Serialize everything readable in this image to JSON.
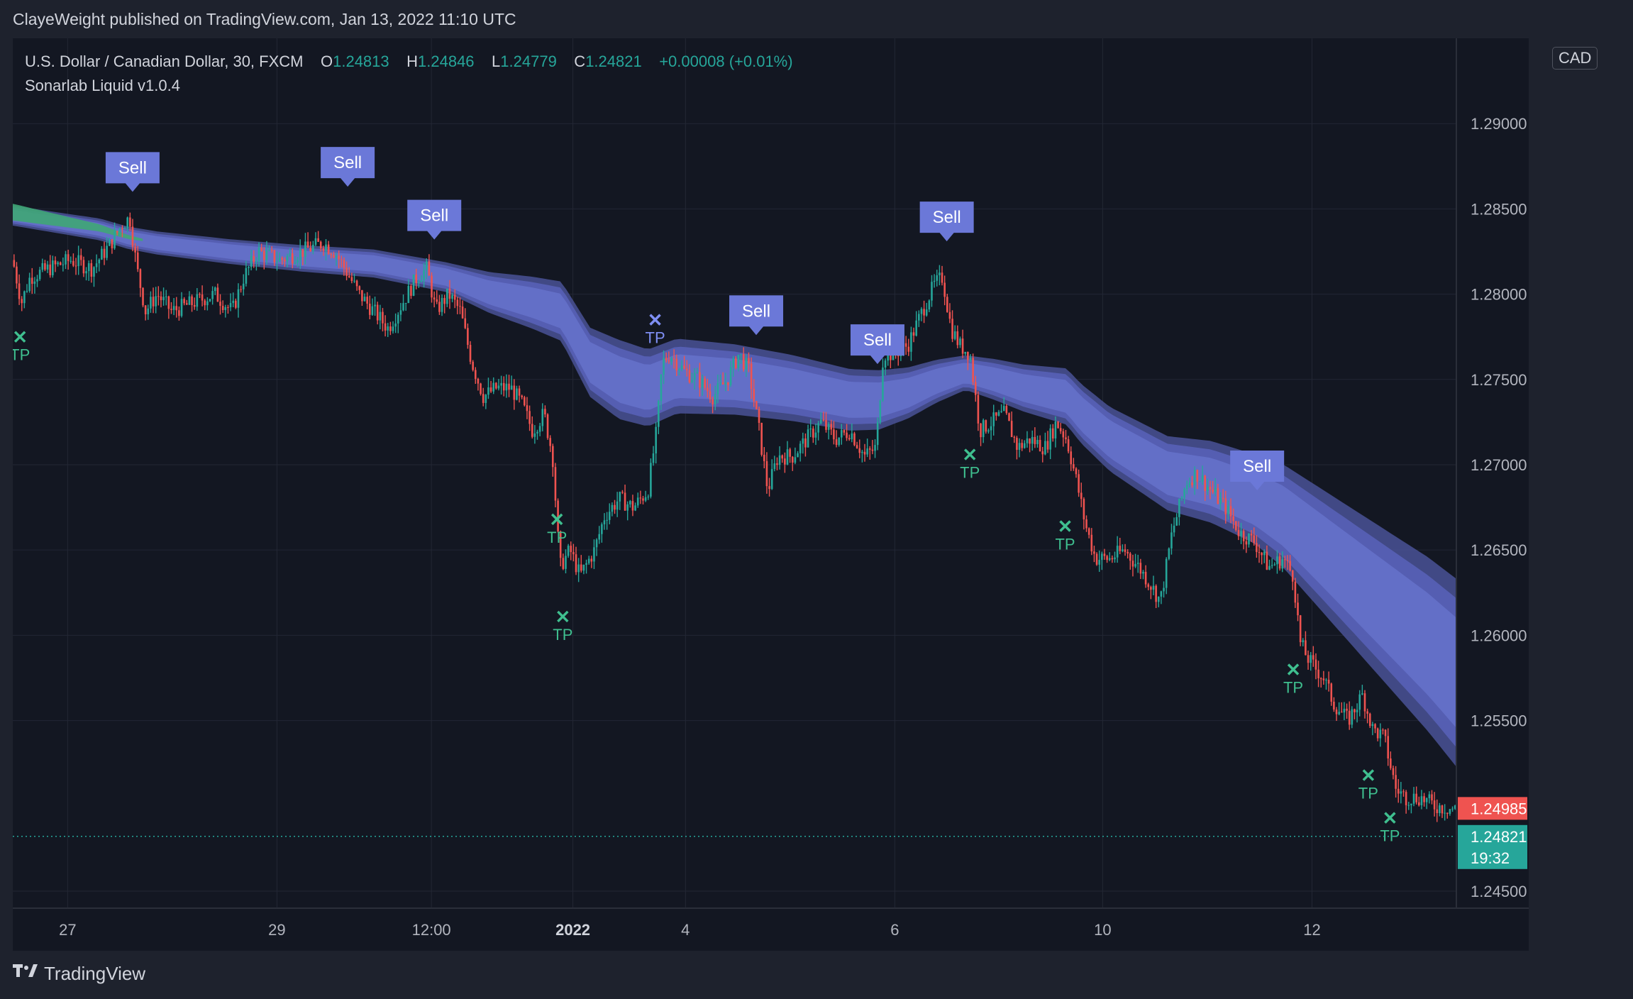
{
  "header": {
    "published_line": "ClayeWeight published on TradingView.com, Jan 13, 2022 11:10 UTC"
  },
  "legend": {
    "symbol": "U.S. Dollar / Canadian Dollar, 30, FXCM",
    "open_label": "O",
    "open": "1.24813",
    "high_label": "H",
    "high": "1.24846",
    "low_label": "L",
    "low": "1.24779",
    "close_label": "C",
    "close": "1.24821",
    "change": "+0.00008 (+0.01%)",
    "indicator": "Sonarlab Liquid v1.0.4"
  },
  "currency_button": "CAD",
  "footer": {
    "brand": "TradingView",
    "logo_icon": "tradingview-logo-icon"
  },
  "colors": {
    "background": "#131722",
    "frame": "#1e222d",
    "up": "#26a69a",
    "down": "#ef5350",
    "band": "#6470c8",
    "band_edge": "#4a5296",
    "band_green": "#3fa676",
    "signal": "#6b78d8",
    "tp_green": "#3fbf8f",
    "tp_blue": "#7f8ff5",
    "grid": "#232734"
  },
  "chart_data": {
    "type": "candlestick",
    "symbol": "USDCAD",
    "timeframe": "30",
    "ylim": [
      1.244,
      1.295
    ],
    "y_ticks": [
      "1.29000",
      "1.28500",
      "1.28000",
      "1.27500",
      "1.27000",
      "1.26500",
      "1.26000",
      "1.25500",
      "1.24500"
    ],
    "y_tick_values": [
      1.29,
      1.285,
      1.28,
      1.275,
      1.27,
      1.265,
      1.26,
      1.255,
      1.245
    ],
    "x_range": [
      0,
      100
    ],
    "x_ticks": [
      {
        "x": 3.8,
        "label": "27",
        "bold": false
      },
      {
        "x": 18.3,
        "label": "29",
        "bold": false
      },
      {
        "x": 29.0,
        "label": "12:00",
        "bold": false
      },
      {
        "x": 38.8,
        "label": "2022",
        "bold": true
      },
      {
        "x": 46.6,
        "label": "4",
        "bold": false
      },
      {
        "x": 61.1,
        "label": "6",
        "bold": false
      },
      {
        "x": 75.5,
        "label": "10",
        "bold": false
      },
      {
        "x": 90.0,
        "label": "12",
        "bold": false
      }
    ],
    "price_path": [
      [
        0,
        1.282
      ],
      [
        0.6,
        1.2795
      ],
      [
        1.2,
        1.281
      ],
      [
        2.5,
        1.2815
      ],
      [
        4,
        1.282
      ],
      [
        5.5,
        1.2815
      ],
      [
        6.8,
        1.283
      ],
      [
        7.5,
        1.284
      ],
      [
        8.1,
        1.2845
      ],
      [
        8.6,
        1.2815
      ],
      [
        9.2,
        1.279
      ],
      [
        10,
        1.28
      ],
      [
        11,
        1.279
      ],
      [
        12.5,
        1.2795
      ],
      [
        14,
        1.28
      ],
      [
        15.2,
        1.279
      ],
      [
        16,
        1.281
      ],
      [
        17,
        1.2825
      ],
      [
        18.5,
        1.282
      ],
      [
        20,
        1.2825
      ],
      [
        21.5,
        1.283
      ],
      [
        22.3,
        1.2825
      ],
      [
        23,
        1.2815
      ],
      [
        24,
        1.28
      ],
      [
        25,
        1.279
      ],
      [
        26,
        1.278
      ],
      [
        27,
        1.2795
      ],
      [
        28,
        1.281
      ],
      [
        28.7,
        1.2815
      ],
      [
        29.3,
        1.279
      ],
      [
        30.2,
        1.28
      ],
      [
        31,
        1.279
      ],
      [
        31.8,
        1.276
      ],
      [
        32.6,
        1.274
      ],
      [
        33.5,
        1.2745
      ],
      [
        34.5,
        1.2745
      ],
      [
        35.3,
        1.2735
      ],
      [
        36,
        1.272
      ],
      [
        36.8,
        1.273
      ],
      [
        37.4,
        1.2705
      ],
      [
        37.9,
        1.264
      ],
      [
        38.6,
        1.265
      ],
      [
        39.3,
        1.2635
      ],
      [
        40.3,
        1.265
      ],
      [
        41,
        1.267
      ],
      [
        42,
        1.268
      ],
      [
        43,
        1.2675
      ],
      [
        44,
        1.2685
      ],
      [
        44.6,
        1.272
      ],
      [
        45,
        1.276
      ],
      [
        45.5,
        1.2765
      ],
      [
        46.5,
        1.2755
      ],
      [
        47.5,
        1.275
      ],
      [
        48.5,
        1.274
      ],
      [
        49.5,
        1.275
      ],
      [
        50.3,
        1.2765
      ],
      [
        51,
        1.2755
      ],
      [
        51.7,
        1.272
      ],
      [
        52.3,
        1.2685
      ],
      [
        53,
        1.2705
      ],
      [
        54,
        1.2705
      ],
      [
        55,
        1.2715
      ],
      [
        56,
        1.2725
      ],
      [
        57,
        1.2715
      ],
      [
        58,
        1.272
      ],
      [
        59,
        1.2705
      ],
      [
        59.8,
        1.271
      ],
      [
        60.3,
        1.2765
      ],
      [
        61,
        1.2765
      ],
      [
        62,
        1.277
      ],
      [
        63,
        1.279
      ],
      [
        63.8,
        1.2805
      ],
      [
        64.4,
        1.281
      ],
      [
        65,
        1.278
      ],
      [
        65.6,
        1.277
      ],
      [
        66.3,
        1.2765
      ],
      [
        67,
        1.272
      ],
      [
        67.8,
        1.2725
      ],
      [
        68.7,
        1.273
      ],
      [
        69.6,
        1.271
      ],
      [
        70.5,
        1.2715
      ],
      [
        71.5,
        1.271
      ],
      [
        72.3,
        1.2725
      ],
      [
        73,
        1.2715
      ],
      [
        73.7,
        1.269
      ],
      [
        74.3,
        1.2665
      ],
      [
        75,
        1.2645
      ],
      [
        76,
        1.2645
      ],
      [
        77,
        1.265
      ],
      [
        78,
        1.264
      ],
      [
        78.8,
        1.263
      ],
      [
        79.5,
        1.262
      ],
      [
        80.3,
        1.266
      ],
      [
        81.3,
        1.269
      ],
      [
        82,
        1.2695
      ],
      [
        83,
        1.2685
      ],
      [
        84,
        1.2675
      ],
      [
        85,
        1.266
      ],
      [
        86,
        1.2655
      ],
      [
        87,
        1.264
      ],
      [
        88,
        1.2645
      ],
      [
        88.7,
        1.2635
      ],
      [
        89.2,
        1.2595
      ],
      [
        89.8,
        1.2585
      ],
      [
        90.8,
        1.2575
      ],
      [
        91.5,
        1.256
      ],
      [
        92.5,
        1.255
      ],
      [
        93.5,
        1.2565
      ],
      [
        94.2,
        1.2545
      ],
      [
        95,
        1.254
      ],
      [
        95.8,
        1.251
      ],
      [
        96.5,
        1.2505
      ],
      [
        97.5,
        1.2505
      ],
      [
        98.5,
        1.25
      ],
      [
        100,
        1.2498
      ]
    ],
    "liquid_band": {
      "center": [
        [
          0,
          1.2846
        ],
        [
          3,
          1.2842
        ],
        [
          6,
          1.2838
        ],
        [
          8,
          1.2833
        ],
        [
          10,
          1.283
        ],
        [
          15,
          1.2825
        ],
        [
          20,
          1.2821
        ],
        [
          25,
          1.2818
        ],
        [
          30,
          1.281
        ],
        [
          33,
          1.2801
        ],
        [
          36,
          1.2795
        ],
        [
          38,
          1.279
        ],
        [
          39,
          1.2775
        ],
        [
          40,
          1.276
        ],
        [
          42,
          1.275
        ],
        [
          44,
          1.2745
        ],
        [
          46,
          1.2752
        ],
        [
          50,
          1.275
        ],
        [
          54,
          1.2745
        ],
        [
          58,
          1.2738
        ],
        [
          60,
          1.2738
        ],
        [
          62,
          1.2742
        ],
        [
          64,
          1.2749
        ],
        [
          66,
          1.2754
        ],
        [
          68,
          1.275
        ],
        [
          70,
          1.2745
        ],
        [
          73,
          1.274
        ],
        [
          74,
          1.273
        ],
        [
          76,
          1.2715
        ],
        [
          78,
          1.2705
        ],
        [
          80,
          1.2695
        ],
        [
          83,
          1.269
        ],
        [
          86,
          1.268
        ],
        [
          88,
          1.267
        ],
        [
          90,
          1.2655
        ],
        [
          92,
          1.264
        ],
        [
          94,
          1.2625
        ],
        [
          96,
          1.261
        ],
        [
          98,
          1.2595
        ],
        [
          100,
          1.2578
        ]
      ],
      "half_width": [
        [
          0,
          0.0004
        ],
        [
          30,
          0.0006
        ],
        [
          38,
          0.0012
        ],
        [
          42,
          0.0016
        ],
        [
          60,
          0.0012
        ],
        [
          66,
          0.0007
        ],
        [
          74,
          0.0012
        ],
        [
          86,
          0.0018
        ],
        [
          100,
          0.0038
        ]
      ]
    },
    "sell_signals": [
      {
        "x": 8.3,
        "price": 1.286,
        "label": "Sell"
      },
      {
        "x": 23.2,
        "price": 1.2863,
        "label": "Sell"
      },
      {
        "x": 29.2,
        "price": 1.2832,
        "label": "Sell"
      },
      {
        "x": 51.5,
        "price": 1.2776,
        "label": "Sell"
      },
      {
        "x": 59.9,
        "price": 1.2759,
        "label": "Sell"
      },
      {
        "x": 64.7,
        "price": 1.2831,
        "label": "Sell"
      },
      {
        "x": 86.2,
        "price": 1.2685,
        "label": "Sell"
      }
    ],
    "tp_markers": [
      {
        "x": 0.5,
        "price": 1.2775,
        "label": "TP",
        "color": "green"
      },
      {
        "x": 37.7,
        "price": 1.2668,
        "label": "TP",
        "color": "green"
      },
      {
        "x": 38.1,
        "price": 1.2611,
        "label": "TP",
        "color": "green"
      },
      {
        "x": 44.5,
        "price": 1.2785,
        "label": "TP",
        "color": "blue"
      },
      {
        "x": 66.3,
        "price": 1.2706,
        "label": "TP",
        "color": "green"
      },
      {
        "x": 72.9,
        "price": 1.2664,
        "label": "TP",
        "color": "green"
      },
      {
        "x": 88.7,
        "price": 1.258,
        "label": "TP",
        "color": "green"
      },
      {
        "x": 93.9,
        "price": 1.2518,
        "label": "TP",
        "color": "green"
      },
      {
        "x": 95.4,
        "price": 1.2493,
        "label": "TP",
        "color": "green"
      }
    ],
    "price_labels": [
      {
        "value": "1.24985",
        "price": 1.24985,
        "kind": "bid",
        "color": "#ef5350"
      },
      {
        "value": "1.24821",
        "price": 1.24821,
        "kind": "last",
        "color": "#26a69a",
        "countdown": "19:32"
      }
    ]
  }
}
